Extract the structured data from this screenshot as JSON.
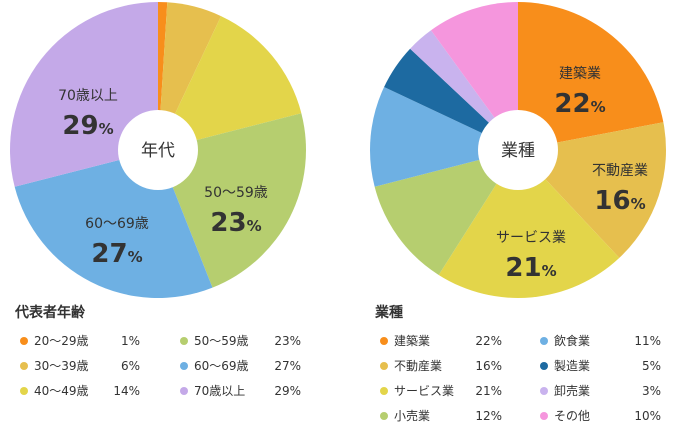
{
  "colors": {
    "orange": "#F88E1B",
    "gold": "#E6BF4E",
    "yellow": "#E3D54A",
    "green": "#B6CE6F",
    "blue": "#6EB0E3",
    "purple": "#C4A9E8",
    "navy": "#1D6AA1",
    "lavender": "#C9B3EE",
    "pink": "#F596DD"
  },
  "chart_data": [
    {
      "type": "pie",
      "center_label": "年代",
      "legend_title": "代表者年齢",
      "slices": [
        {
          "label": "20〜29歳",
          "value": 1,
          "unit": "%",
          "color": "#F88E1B",
          "show_label": false
        },
        {
          "label": "30〜39歳",
          "value": 6,
          "unit": "%",
          "color": "#E6BF4E",
          "show_label": false
        },
        {
          "label": "40〜49歳",
          "value": 14,
          "unit": "%",
          "color": "#E3D54A",
          "show_label": false
        },
        {
          "label": "50〜59歳",
          "value": 23,
          "unit": "%",
          "color": "#B6CE6F",
          "show_label": true
        },
        {
          "label": "60〜69歳",
          "value": 27,
          "unit": "%",
          "color": "#6EB0E3",
          "show_label": true
        },
        {
          "label": "70歳以上",
          "value": 29,
          "unit": "%",
          "color": "#C4A9E8",
          "show_label": true
        }
      ]
    },
    {
      "type": "pie",
      "center_label": "業種",
      "legend_title": "業種",
      "slices": [
        {
          "label": "建築業",
          "value": 22,
          "unit": "%",
          "color": "#F88E1B",
          "show_label": true
        },
        {
          "label": "不動産業",
          "value": 16,
          "unit": "%",
          "color": "#E6BF4E",
          "show_label": true
        },
        {
          "label": "サービス業",
          "value": 21,
          "unit": "%",
          "color": "#E3D54A",
          "show_label": true
        },
        {
          "label": "小売業",
          "value": 12,
          "unit": "%",
          "color": "#B6CE6F",
          "show_label": false
        },
        {
          "label": "飲食業",
          "value": 11,
          "unit": "%",
          "color": "#6EB0E3",
          "show_label": false
        },
        {
          "label": "製造業",
          "value": 5,
          "unit": "%",
          "color": "#1D6AA1",
          "show_label": false
        },
        {
          "label": "卸売業",
          "value": 3,
          "unit": "%",
          "color": "#C9B3EE",
          "show_label": false
        },
        {
          "label": "その他",
          "value": 10,
          "unit": "%",
          "color": "#F596DD",
          "show_label": false
        }
      ]
    }
  ]
}
